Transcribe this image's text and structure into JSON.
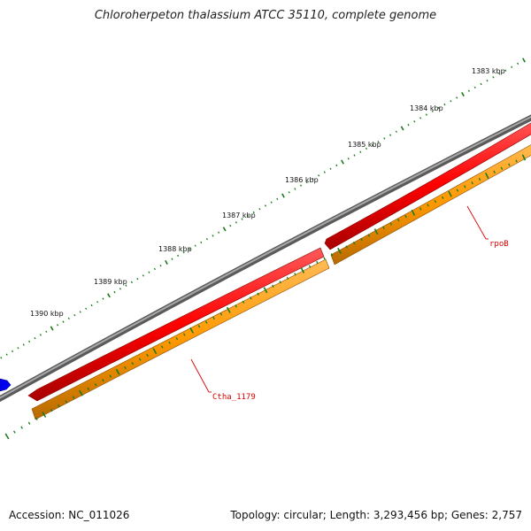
{
  "title": "Chloroherpeton thalassium ATCC 35110, complete genome",
  "ticks": [
    {
      "kbp": 1383,
      "label": "1383 kbp"
    },
    {
      "kbp": 1384,
      "label": "1384 kbp"
    },
    {
      "kbp": 1385,
      "label": "1385 kbp"
    },
    {
      "kbp": 1386,
      "label": "1386 kbp"
    },
    {
      "kbp": 1387,
      "label": "1387 kbp"
    },
    {
      "kbp": 1388,
      "label": "1388 kbp"
    },
    {
      "kbp": 1389,
      "label": "1389 kbp"
    },
    {
      "kbp": 1390,
      "label": "1390 kbp"
    }
  ],
  "genes": [
    {
      "name": "rpoB",
      "color": "#ff0000"
    },
    {
      "name": "Ctha_1179",
      "color": "#ff0000"
    }
  ],
  "colors": {
    "backbone": "#808080",
    "cds_strand": "#ff0000",
    "rna_strand": "#ff9900",
    "other_feature": "#0000ff",
    "ticks": "#1a7a1a",
    "gene_label": "#dd0000"
  },
  "footer": {
    "accession": "Accession: NC_011026",
    "topology": "Topology: circular; Length: 3,293,456 bp; Genes: 2,757"
  }
}
